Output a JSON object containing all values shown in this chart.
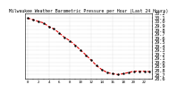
{
  "title": "Milwaukee Weather Barometric Pressure per Hour (Last 24 Hours)",
  "hours": [
    0,
    1,
    2,
    3,
    4,
    5,
    6,
    7,
    8,
    9,
    10,
    11,
    12,
    13,
    14,
    15,
    16,
    17,
    18,
    19,
    20,
    21,
    22,
    23
  ],
  "pressure": [
    30.09,
    30.05,
    30.01,
    29.97,
    29.88,
    29.82,
    29.72,
    29.61,
    29.53,
    29.42,
    29.3,
    29.18,
    29.05,
    28.92,
    28.82,
    28.75,
    28.72,
    28.7,
    28.72,
    28.75,
    28.78,
    28.78,
    28.78,
    28.77
  ],
  "line_color": "#dd0000",
  "dot_color": "#000000",
  "background_color": "#ffffff",
  "grid_color": "#aaaaaa",
  "ylim_min": 28.6,
  "ylim_max": 30.2,
  "ylabel_fontsize": 3.8,
  "xlabel_fontsize": 3.0,
  "title_fontsize": 3.5,
  "vgrid_positions": [
    0,
    4,
    8,
    12,
    16,
    20,
    23
  ],
  "ytick_values": [
    28.6,
    28.7,
    28.8,
    28.9,
    29.0,
    29.1,
    29.2,
    29.3,
    29.4,
    29.5,
    29.6,
    29.7,
    29.8,
    29.9,
    30.0,
    30.1,
    30.2
  ]
}
